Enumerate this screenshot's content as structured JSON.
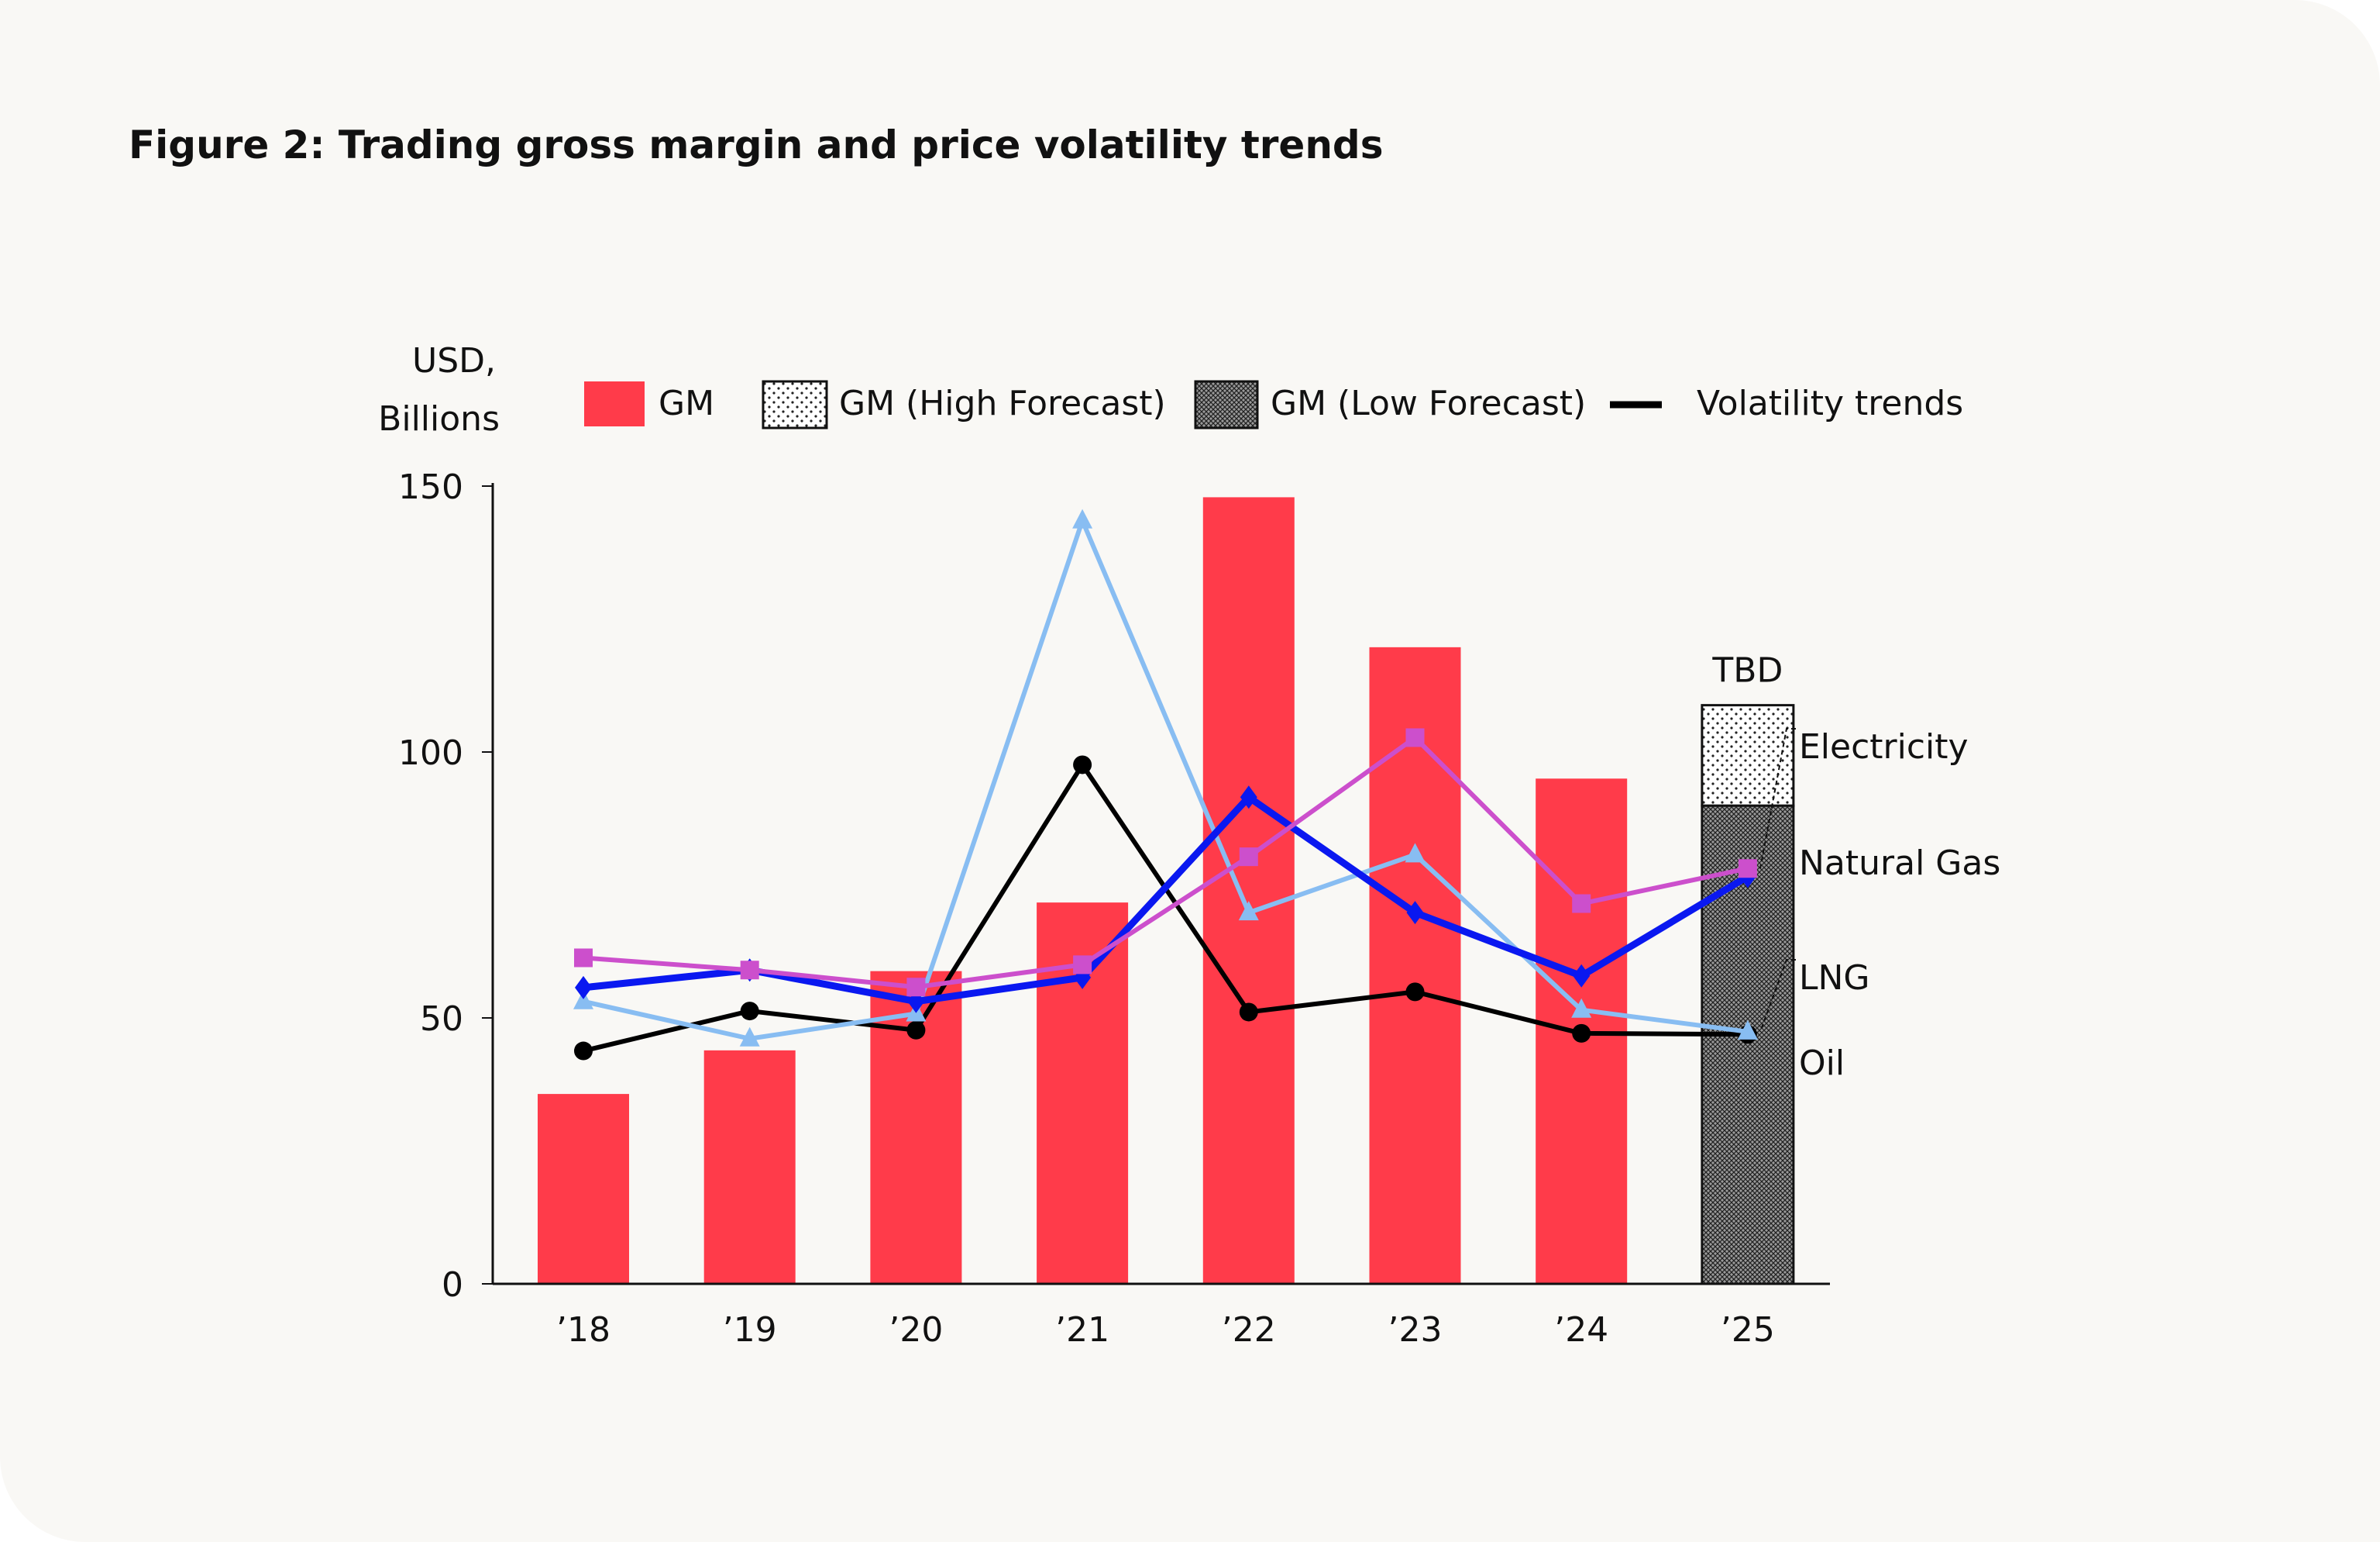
{
  "title": "Figure 2: Trading gross margin and price volatility trends",
  "chart_data": {
    "type": "bar",
    "title": "Figure 2: Trading gross margin and price volatility trends",
    "ylabel_line1": "USD,",
    "ylabel_line2": "Billions",
    "ylim": [
      0,
      150
    ],
    "yticks": [
      "0",
      "50",
      "100",
      "150"
    ],
    "categories": [
      "’18",
      "’19",
      "’20",
      "’21",
      "’22",
      "’23",
      "’24",
      "’25"
    ],
    "legend": {
      "placement": "top",
      "items": [
        "GM",
        "GM (High Forecast)",
        "GM (Low Forecast)",
        "Volatility trends"
      ]
    },
    "bars": {
      "name": "GM",
      "color": "#ff3b4a",
      "values": [
        35.7,
        43.9,
        58.8,
        71.7,
        147.9,
        119.7,
        95.0,
        null
      ]
    },
    "forecast_2025": {
      "label": "TBD",
      "low": 89.9,
      "high": 108.8
    },
    "series": [
      {
        "name": "Electricity",
        "color": "#cc4fcc",
        "marker": "square",
        "values": [
          61.3,
          59.0,
          55.8,
          60.0,
          80.3,
          102.7,
          71.5,
          78.1
        ]
      },
      {
        "name": "Natural Gas",
        "color": "#0a18f0",
        "marker": "diamond",
        "values": [
          55.7,
          59.0,
          53.1,
          57.6,
          91.5,
          69.8,
          57.9,
          76.6
        ]
      },
      {
        "name": "LNG",
        "color": "#88bdf2",
        "marker": "triangle",
        "values": [
          53.1,
          46.1,
          50.8,
          143.5,
          69.8,
          80.7,
          51.5,
          47.4
        ]
      },
      {
        "name": "Oil",
        "color": "#000000",
        "marker": "circle",
        "values": [
          43.8,
          51.3,
          47.7,
          97.6,
          51.1,
          54.9,
          47.1,
          46.9
        ]
      }
    ]
  }
}
